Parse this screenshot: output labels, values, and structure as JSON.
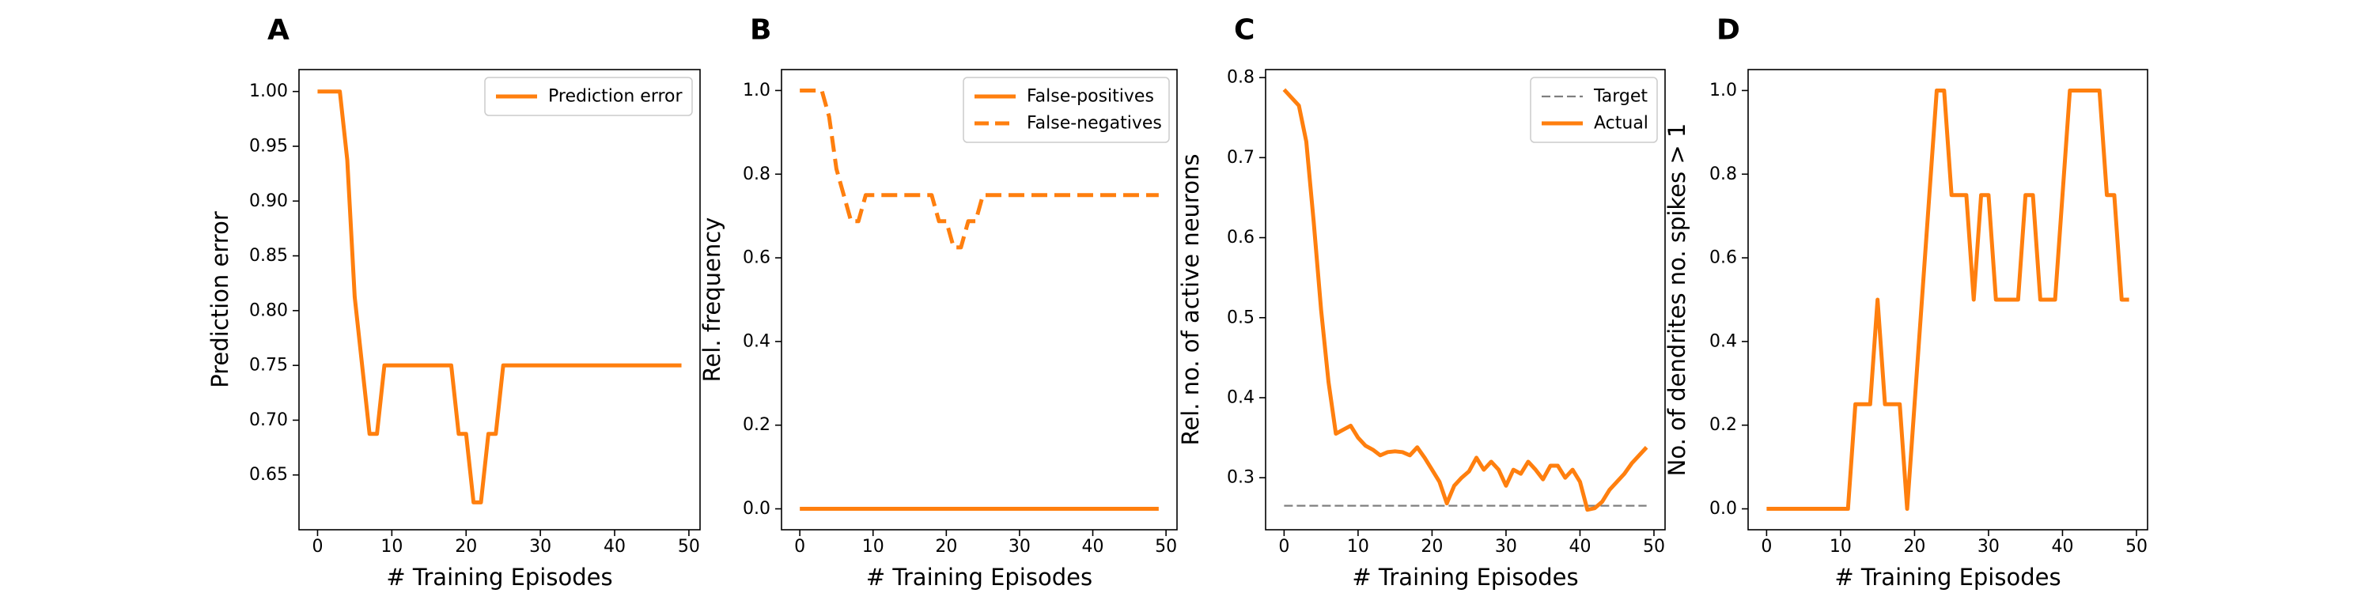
{
  "chart_data": [
    {
      "type": "line",
      "panel_label": "A",
      "xlabel": "# Training Episodes",
      "ylabel": "Prediction error",
      "xlim": [
        -2.5,
        51.5
      ],
      "ylim": [
        0.6,
        1.02
      ],
      "xticks": [
        0,
        10,
        20,
        30,
        40,
        50
      ],
      "yticks": [
        0.65,
        0.7,
        0.75,
        0.8,
        0.85,
        0.9,
        0.95,
        1.0
      ],
      "ytick_labels": [
        "0.65",
        "0.70",
        "0.75",
        "0.80",
        "0.85",
        "0.90",
        "0.95",
        "1.00"
      ],
      "grid": false,
      "legend": "top-right",
      "series": [
        {
          "name": "Prediction error",
          "color": "#ff7f0e",
          "dash": "solid",
          "x": [
            0,
            1,
            2,
            3,
            4,
            5,
            6,
            7,
            8,
            9,
            10,
            11,
            12,
            13,
            14,
            15,
            16,
            17,
            18,
            19,
            20,
            21,
            22,
            23,
            24,
            25,
            26,
            27,
            28,
            29,
            30,
            31,
            32,
            33,
            34,
            35,
            36,
            37,
            38,
            39,
            40,
            41,
            42,
            43,
            44,
            45,
            46,
            47,
            48,
            49
          ],
          "y": [
            1.0,
            1.0,
            1.0,
            1.0,
            0.9375,
            0.8125,
            0.75,
            0.6875,
            0.6875,
            0.75,
            0.75,
            0.75,
            0.75,
            0.75,
            0.75,
            0.75,
            0.75,
            0.75,
            0.75,
            0.6875,
            0.6875,
            0.625,
            0.625,
            0.6875,
            0.6875,
            0.75,
            0.75,
            0.75,
            0.75,
            0.75,
            0.75,
            0.75,
            0.75,
            0.75,
            0.75,
            0.75,
            0.75,
            0.75,
            0.75,
            0.75,
            0.75,
            0.75,
            0.75,
            0.75,
            0.75,
            0.75,
            0.75,
            0.75,
            0.75,
            0.75
          ]
        }
      ]
    },
    {
      "type": "line",
      "panel_label": "B",
      "xlabel": "# Training Episodes",
      "ylabel": "Rel. frequency",
      "xlim": [
        -2.5,
        51.5
      ],
      "ylim": [
        -0.05,
        1.05
      ],
      "xticks": [
        0,
        10,
        20,
        30,
        40,
        50
      ],
      "yticks": [
        0.0,
        0.2,
        0.4,
        0.6,
        0.8,
        1.0
      ],
      "ytick_labels": [
        "0.0",
        "0.2",
        "0.4",
        "0.6",
        "0.8",
        "1.0"
      ],
      "grid": false,
      "legend": "top-right",
      "series": [
        {
          "name": "False-positives",
          "color": "#ff7f0e",
          "dash": "solid",
          "x": [
            0,
            1,
            2,
            3,
            4,
            5,
            6,
            7,
            8,
            9,
            10,
            11,
            12,
            13,
            14,
            15,
            16,
            17,
            18,
            19,
            20,
            21,
            22,
            23,
            24,
            25,
            26,
            27,
            28,
            29,
            30,
            31,
            32,
            33,
            34,
            35,
            36,
            37,
            38,
            39,
            40,
            41,
            42,
            43,
            44,
            45,
            46,
            47,
            48,
            49
          ],
          "y": [
            0,
            0,
            0,
            0,
            0,
            0,
            0,
            0,
            0,
            0,
            0,
            0,
            0,
            0,
            0,
            0,
            0,
            0,
            0,
            0,
            0,
            0,
            0,
            0,
            0,
            0,
            0,
            0,
            0,
            0,
            0,
            0,
            0,
            0,
            0,
            0,
            0,
            0,
            0,
            0,
            0,
            0,
            0,
            0,
            0,
            0,
            0,
            0,
            0,
            0
          ]
        },
        {
          "name": "False-negatives",
          "color": "#ff7f0e",
          "dash": "dashed",
          "x": [
            0,
            1,
            2,
            3,
            4,
            5,
            6,
            7,
            8,
            9,
            10,
            11,
            12,
            13,
            14,
            15,
            16,
            17,
            18,
            19,
            20,
            21,
            22,
            23,
            24,
            25,
            26,
            27,
            28,
            29,
            30,
            31,
            32,
            33,
            34,
            35,
            36,
            37,
            38,
            39,
            40,
            41,
            42,
            43,
            44,
            45,
            46,
            47,
            48,
            49
          ],
          "y": [
            1.0,
            1.0,
            1.0,
            1.0,
            0.9375,
            0.8125,
            0.75,
            0.6875,
            0.6875,
            0.75,
            0.75,
            0.75,
            0.75,
            0.75,
            0.75,
            0.75,
            0.75,
            0.75,
            0.75,
            0.6875,
            0.6875,
            0.625,
            0.625,
            0.6875,
            0.6875,
            0.75,
            0.75,
            0.75,
            0.75,
            0.75,
            0.75,
            0.75,
            0.75,
            0.75,
            0.75,
            0.75,
            0.75,
            0.75,
            0.75,
            0.75,
            0.75,
            0.75,
            0.75,
            0.75,
            0.75,
            0.75,
            0.75,
            0.75,
            0.75,
            0.75
          ]
        }
      ]
    },
    {
      "type": "line",
      "panel_label": "C",
      "xlabel": "# Training Episodes",
      "ylabel": "Rel. no. of active neurons",
      "xlim": [
        -2.5,
        51.5
      ],
      "ylim": [
        0.235,
        0.81
      ],
      "xticks": [
        0,
        10,
        20,
        30,
        40,
        50
      ],
      "yticks": [
        0.3,
        0.4,
        0.5,
        0.6,
        0.7,
        0.8
      ],
      "ytick_labels": [
        "0.3",
        "0.4",
        "0.5",
        "0.6",
        "0.7",
        "0.8"
      ],
      "grid": false,
      "legend": "top-right",
      "series": [
        {
          "name": "Target",
          "color": "#7f7f7f",
          "dash": "dashed",
          "x": [
            0,
            49
          ],
          "y": [
            0.265,
            0.265
          ]
        },
        {
          "name": "Actual",
          "color": "#ff7f0e",
          "dash": "solid",
          "x": [
            0,
            1,
            2,
            3,
            4,
            5,
            6,
            7,
            8,
            9,
            10,
            11,
            12,
            13,
            14,
            15,
            16,
            17,
            18,
            19,
            20,
            21,
            22,
            23,
            24,
            25,
            26,
            27,
            28,
            29,
            30,
            31,
            32,
            33,
            34,
            35,
            36,
            37,
            38,
            39,
            40,
            41,
            42,
            43,
            44,
            45,
            46,
            47,
            48,
            49
          ],
          "y": [
            0.785,
            0.775,
            0.765,
            0.72,
            0.62,
            0.51,
            0.42,
            0.355,
            0.36,
            0.365,
            0.35,
            0.34,
            0.335,
            0.328,
            0.332,
            0.333,
            0.332,
            0.328,
            0.338,
            0.325,
            0.31,
            0.295,
            0.268,
            0.29,
            0.3,
            0.308,
            0.325,
            0.31,
            0.32,
            0.31,
            0.29,
            0.31,
            0.305,
            0.32,
            0.31,
            0.298,
            0.315,
            0.315,
            0.3,
            0.31,
            0.295,
            0.26,
            0.262,
            0.27,
            0.285,
            0.295,
            0.305,
            0.318,
            0.328,
            0.338
          ]
        }
      ]
    },
    {
      "type": "line",
      "panel_label": "D",
      "xlabel": "# Training Episodes",
      "ylabel": "No. of dendrites no. spikes > 1",
      "xlim": [
        -2.5,
        51.5
      ],
      "ylim": [
        -0.05,
        1.05
      ],
      "xticks": [
        0,
        10,
        20,
        30,
        40,
        50
      ],
      "yticks": [
        0.0,
        0.2,
        0.4,
        0.6,
        0.8,
        1.0
      ],
      "ytick_labels": [
        "0.0",
        "0.2",
        "0.4",
        "0.6",
        "0.8",
        "1.0"
      ],
      "grid": false,
      "legend": "none",
      "series": [
        {
          "color": "#ff7f0e",
          "dash": "solid",
          "x": [
            0,
            1,
            2,
            3,
            4,
            5,
            6,
            7,
            8,
            9,
            10,
            11,
            12,
            13,
            14,
            15,
            16,
            17,
            18,
            19,
            20,
            21,
            22,
            23,
            24,
            25,
            26,
            27,
            28,
            29,
            30,
            31,
            32,
            33,
            34,
            35,
            36,
            37,
            38,
            39,
            40,
            41,
            42,
            43,
            44,
            45,
            46,
            47,
            48,
            49
          ],
          "y": [
            0,
            0,
            0,
            0,
            0,
            0,
            0,
            0,
            0,
            0,
            0,
            0,
            0.25,
            0.25,
            0.25,
            0.5,
            0.25,
            0.25,
            0.25,
            0,
            0.25,
            0.5,
            0.75,
            1.0,
            1.0,
            0.75,
            0.75,
            0.75,
            0.5,
            0.75,
            0.75,
            0.5,
            0.5,
            0.5,
            0.5,
            0.75,
            0.75,
            0.5,
            0.5,
            0.5,
            0.75,
            1.0,
            1.0,
            1.0,
            1.0,
            1.0,
            0.75,
            0.75,
            0.5,
            0.5
          ]
        }
      ]
    }
  ]
}
